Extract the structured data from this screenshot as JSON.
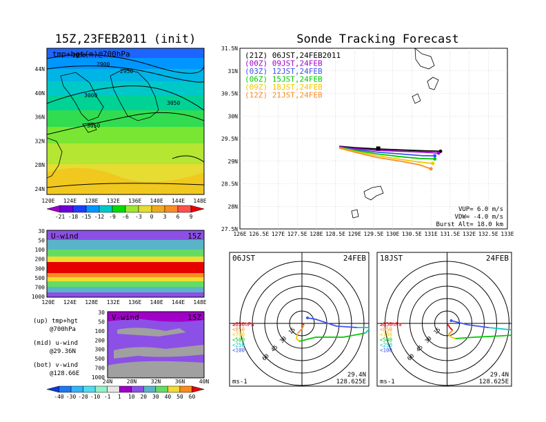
{
  "left_panel": {
    "title": "15Z,23FEB2011 (init)",
    "top_map": {
      "overlay_label": "tmp+hgt(m)@700hPa",
      "contour_labels": [
        "2850",
        "2900",
        "2950",
        "3000",
        "3050",
        "3050"
      ],
      "y_ticks": [
        "44N",
        "40N",
        "36N",
        "32N",
        "28N",
        "24N"
      ],
      "x_ticks": [
        "120E",
        "124E",
        "128E",
        "132E",
        "136E",
        "140E",
        "144E",
        "148E"
      ],
      "colorbar_ticks": [
        "-21",
        "-18",
        "-15",
        "-12",
        "-9",
        "-6",
        "-3",
        "0",
        "3",
        "6",
        "9"
      ],
      "colorbar_colors": [
        "#a000c8",
        "#6e00dc",
        "#1e3cff",
        "#0096ff",
        "#00c8c8",
        "#00dc00",
        "#a0e632",
        "#e6dc32",
        "#f0aa1e",
        "#fa8c28",
        "#ff5050",
        "#e60000"
      ]
    },
    "u_wind": {
      "label": "U-wind",
      "time": "15Z",
      "y_ticks": [
        "30",
        "50",
        "100",
        "200",
        "300",
        "500",
        "700",
        "1000"
      ],
      "x_ticks": [
        "120E",
        "124E",
        "128E",
        "132E",
        "136E",
        "140E",
        "144E",
        "148E"
      ]
    },
    "v_wind": {
      "label": "V-wind",
      "time": "15Z",
      "y_ticks": [
        "30",
        "50",
        "100",
        "200",
        "300",
        "500",
        "700",
        "1000"
      ],
      "x_ticks": [
        "24N",
        "28N",
        "32N",
        "36N",
        "40N"
      ]
    },
    "notes": [
      {
        "a": "(up) tmp+hgt",
        "b": "@700hPa"
      },
      {
        "a": "(mid) u-wind",
        "b": "@29.36N"
      },
      {
        "a": "(bot) v-wind",
        "b": "@128.66E"
      }
    ],
    "wind_colorbar": {
      "ticks": [
        "-40",
        "-30",
        "-20",
        "-10",
        "-1",
        "1",
        "10",
        "20",
        "30",
        "40",
        "50",
        "60"
      ],
      "colors": [
        "#0a3cdc",
        "#1e78f0",
        "#32b4fa",
        "#50dcf0",
        "#96f0c8",
        "#e6e6e6",
        "#a000c8",
        "#8c50e6",
        "#5ab4c8",
        "#64dc64",
        "#f0dc32",
        "#fa8c1e",
        "#e60000"
      ]
    }
  },
  "chart_data": {
    "type": "line",
    "title": "Sonde Tracking Forecast",
    "x_ticks": [
      "126E",
      "126.5E",
      "127E",
      "127.5E",
      "128E",
      "128.5E",
      "129E",
      "129.5E",
      "130E",
      "130.5E",
      "131E",
      "131.5E",
      "132E",
      "132.5E",
      "133E"
    ],
    "y_ticks": [
      "31.5N",
      "31N",
      "30.5N",
      "30N",
      "29.5N",
      "29N",
      "28.5N",
      "28N",
      "27.5N"
    ],
    "xlim": [
      126,
      133
    ],
    "ylim": [
      27.5,
      31.5
    ],
    "grid": true,
    "legend": [
      {
        "label": "(21Z) 06JST,24FEB2011",
        "color": "#000000"
      },
      {
        "label": "(00Z) 09JST,24FEB",
        "color": "#a000c8"
      },
      {
        "label": "(03Z) 12JST,24FEB",
        "color": "#3c50f0"
      },
      {
        "label": "(06Z) 15JST,24FEB",
        "color": "#00c800"
      },
      {
        "label": "(09Z) 18JST,24FEB",
        "color": "#f0c800"
      },
      {
        "label": "(12Z) 21JST,24FEB",
        "color": "#fa8c28"
      }
    ],
    "series": [
      {
        "name": "(21Z) 06JST,24FEB2011",
        "x": [
          128.6,
          129.0,
          129.6,
          130.2,
          130.8,
          131.25
        ],
        "y": [
          29.33,
          29.3,
          29.27,
          29.25,
          29.23,
          29.22
        ]
      },
      {
        "name": "(00Z) 09JST,24FEB",
        "x": [
          128.6,
          129.0,
          129.6,
          130.2,
          130.8,
          131.2
        ],
        "y": [
          29.32,
          29.28,
          29.24,
          29.22,
          29.2,
          29.18
        ]
      },
      {
        "name": "(03Z) 12JST,24FEB",
        "x": [
          128.6,
          129.0,
          129.6,
          130.2,
          130.8,
          131.1
        ],
        "y": [
          29.31,
          29.26,
          29.2,
          29.16,
          29.12,
          29.12
        ]
      },
      {
        "name": "(06Z) 15JST,24FEB",
        "x": [
          128.6,
          129.0,
          129.6,
          130.2,
          130.7,
          131.1
        ],
        "y": [
          29.3,
          29.24,
          29.16,
          29.1,
          29.06,
          29.05
        ]
      },
      {
        "name": "(09Z) 18JST,24FEB",
        "x": [
          128.6,
          129.0,
          129.6,
          130.2,
          130.7,
          131.05
        ],
        "y": [
          29.3,
          29.22,
          29.12,
          29.04,
          28.98,
          28.95
        ]
      },
      {
        "name": "(12Z) 21JST,24FEB",
        "x": [
          128.6,
          129.0,
          129.6,
          130.2,
          130.7,
          131.0
        ],
        "y": [
          29.29,
          29.2,
          29.08,
          29.0,
          28.92,
          28.83
        ]
      }
    ],
    "launch_point": {
      "x": 129.62,
      "y": 29.28
    },
    "annotations": [
      "VUP= 6.0 m/s",
      "VDW= -4.0 m/s",
      "Burst Alt= 18.0 km"
    ]
  },
  "hodographs": [
    {
      "time": "06JST",
      "date": "24FEB",
      "lat": "29.4N",
      "lon": "128.625E",
      "unit": "ms-1",
      "ring_labels": [
        "15",
        "30",
        "45",
        "60"
      ],
      "level_labels": [
        {
          "text": "≥850hPa",
          "color": "#e60000"
        },
        {
          "text": "<850",
          "color": "#fa8c28"
        },
        {
          "text": "<700",
          "color": "#f0c800"
        },
        {
          "text": "<500",
          "color": "#00c800"
        },
        {
          "text": "<250",
          "color": "#00c8c8"
        },
        {
          "text": "<100",
          "color": "#3c50f0"
        }
      ]
    },
    {
      "time": "18JST",
      "date": "24FEB",
      "lat": "29.4N",
      "lon": "128.625E",
      "unit": "ms-1",
      "ring_labels": [
        "15",
        "30",
        "45",
        "60"
      ],
      "level_labels": [
        {
          "text": "≥850hPa",
          "color": "#e60000"
        },
        {
          "text": "<850",
          "color": "#fa8c28"
        },
        {
          "text": "<700",
          "color": "#f0c800"
        },
        {
          "text": "<500",
          "color": "#00c800"
        },
        {
          "text": "<250",
          "color": "#00c8c8"
        },
        {
          "text": "<100",
          "color": "#3c50f0"
        }
      ]
    }
  ]
}
